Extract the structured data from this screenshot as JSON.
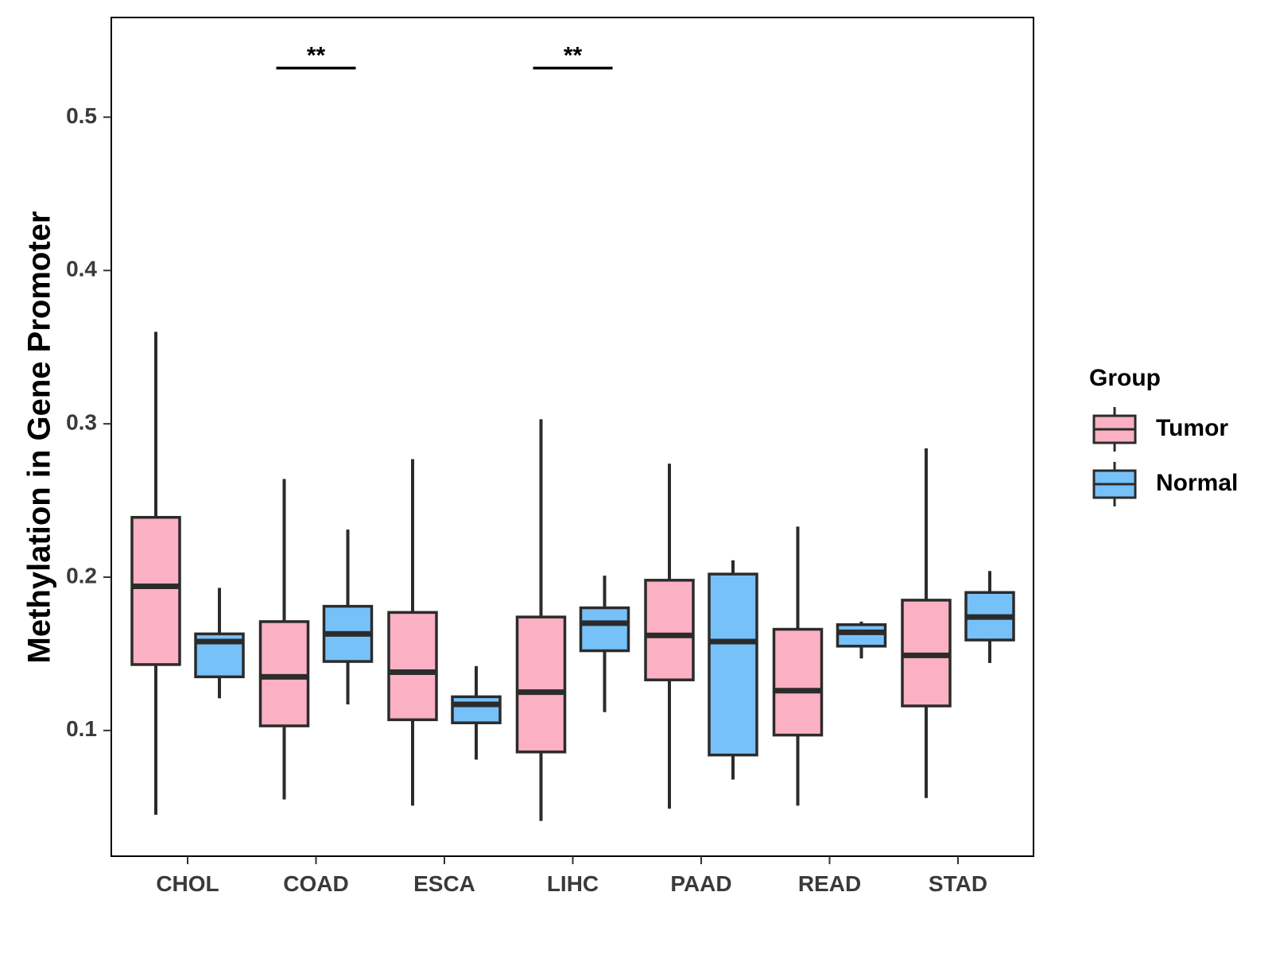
{
  "chart_data": {
    "type": "boxplot",
    "title": "",
    "xlabel": "",
    "ylabel": "Methylation in Gene Promoter",
    "ylim": [
      0.018,
      0.565
    ],
    "yticks": [
      0.1,
      0.2,
      0.3,
      0.4,
      0.5
    ],
    "ytick_labels": [
      "0.1",
      "0.2",
      "0.3",
      "0.4",
      "0.5"
    ],
    "categories": [
      "CHOL",
      "COAD",
      "ESCA",
      "LIHC",
      "PAAD",
      "READ",
      "STAD"
    ],
    "legend": {
      "title": "Group",
      "position": "right",
      "entries": [
        {
          "name": "Tumor",
          "color": "#FBB0C3"
        },
        {
          "name": "Normal",
          "color": "#77C1F9"
        }
      ]
    },
    "series": [
      {
        "name": "Tumor",
        "color": "#FBB0C3",
        "boxes": [
          {
            "whisker_low": 0.045,
            "q1": 0.143,
            "median": 0.194,
            "q3": 0.239,
            "whisker_high": 0.36
          },
          {
            "whisker_low": 0.055,
            "q1": 0.103,
            "median": 0.135,
            "q3": 0.171,
            "whisker_high": 0.264
          },
          {
            "whisker_low": 0.051,
            "q1": 0.107,
            "median": 0.138,
            "q3": 0.177,
            "whisker_high": 0.277
          },
          {
            "whisker_low": 0.041,
            "q1": 0.086,
            "median": 0.125,
            "q3": 0.174,
            "whisker_high": 0.303
          },
          {
            "whisker_low": 0.049,
            "q1": 0.133,
            "median": 0.162,
            "q3": 0.198,
            "whisker_high": 0.274
          },
          {
            "whisker_low": 0.051,
            "q1": 0.097,
            "median": 0.126,
            "q3": 0.166,
            "whisker_high": 0.233
          },
          {
            "whisker_low": 0.056,
            "q1": 0.116,
            "median": 0.149,
            "q3": 0.185,
            "whisker_high": 0.284
          }
        ]
      },
      {
        "name": "Normal",
        "color": "#77C1F9",
        "boxes": [
          {
            "whisker_low": 0.121,
            "q1": 0.135,
            "median": 0.158,
            "q3": 0.163,
            "whisker_high": 0.193
          },
          {
            "whisker_low": 0.117,
            "q1": 0.145,
            "median": 0.163,
            "q3": 0.181,
            "whisker_high": 0.231
          },
          {
            "whisker_low": 0.081,
            "q1": 0.105,
            "median": 0.117,
            "q3": 0.122,
            "whisker_high": 0.142
          },
          {
            "whisker_low": 0.112,
            "q1": 0.152,
            "median": 0.17,
            "q3": 0.18,
            "whisker_high": 0.201
          },
          {
            "whisker_low": 0.068,
            "q1": 0.084,
            "median": 0.158,
            "q3": 0.202,
            "whisker_high": 0.211
          },
          {
            "whisker_low": 0.147,
            "q1": 0.155,
            "median": 0.164,
            "q3": 0.169,
            "whisker_high": 0.171
          },
          {
            "whisker_low": 0.144,
            "q1": 0.159,
            "median": 0.174,
            "q3": 0.19,
            "whisker_high": 0.204
          }
        ]
      }
    ],
    "annotations": [
      {
        "category": "COAD",
        "text": "**",
        "y": 0.532
      },
      {
        "category": "LIHC",
        "text": "**",
        "y": 0.532
      }
    ],
    "grid": false
  }
}
